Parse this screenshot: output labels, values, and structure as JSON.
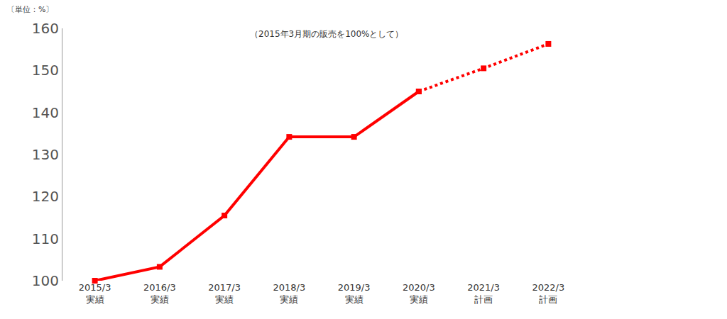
{
  "chart_data": {
    "type": "line",
    "unit_label": "〔単位：%〕",
    "subtitle": "（2015年3月期の販売を100%として）",
    "categories": [
      "2015/3\n実績",
      "2016/3\n実績",
      "2017/3\n実績",
      "2018/3\n実績",
      "2019/3\n実績",
      "2020/3\n実績",
      "2021/3\n計画",
      "2022/3\n計画"
    ],
    "series": [
      {
        "values": [
          100,
          103.3,
          115.5,
          134.2,
          134.2,
          145,
          null,
          null
        ],
        "line_style": "solid"
      },
      {
        "values": [
          null,
          null,
          null,
          null,
          null,
          145,
          150.5,
          156.3
        ],
        "line_style": "dotted"
      }
    ],
    "color": "#ff0000",
    "marker": "square",
    "ylim": [
      100,
      160
    ],
    "yticks": [
      100,
      110,
      120,
      130,
      140,
      150,
      160
    ],
    "grid": false
  }
}
